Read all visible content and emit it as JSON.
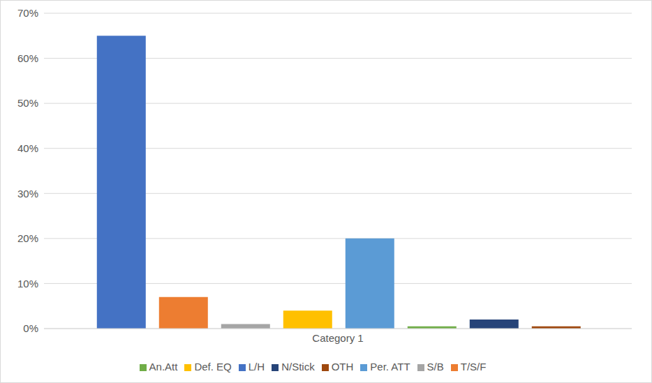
{
  "chart_data": {
    "type": "bar",
    "categories": [
      "Category 1"
    ],
    "series": [
      {
        "name": "L/H",
        "color": "#4472c4",
        "values": [
          65
        ]
      },
      {
        "name": "T/S/F",
        "color": "#ed7d31",
        "values": [
          7
        ]
      },
      {
        "name": "S/B",
        "color": "#a5a5a5",
        "values": [
          1
        ]
      },
      {
        "name": "Def. EQ",
        "color": "#ffc000",
        "values": [
          4
        ]
      },
      {
        "name": "Per. ATT",
        "color": "#5b9bd5",
        "values": [
          20
        ]
      },
      {
        "name": "An.Att",
        "color": "#70ad47",
        "values": [
          0.5
        ]
      },
      {
        "name": "N/Stick",
        "color": "#264478",
        "values": [
          2
        ]
      },
      {
        "name": "OTH",
        "color": "#9e480e",
        "values": [
          0.5
        ]
      }
    ],
    "ylim": [
      0,
      70
    ],
    "yticks": [
      {
        "value": 0,
        "label": "0%"
      },
      {
        "value": 10,
        "label": "10%"
      },
      {
        "value": 20,
        "label": "20%"
      },
      {
        "value": 30,
        "label": "30%"
      },
      {
        "value": 40,
        "label": "40%"
      },
      {
        "value": 50,
        "label": "50%"
      },
      {
        "value": 60,
        "label": "60%"
      },
      {
        "value": 70,
        "label": "70%"
      }
    ],
    "grid": true,
    "legend": "bottom"
  }
}
